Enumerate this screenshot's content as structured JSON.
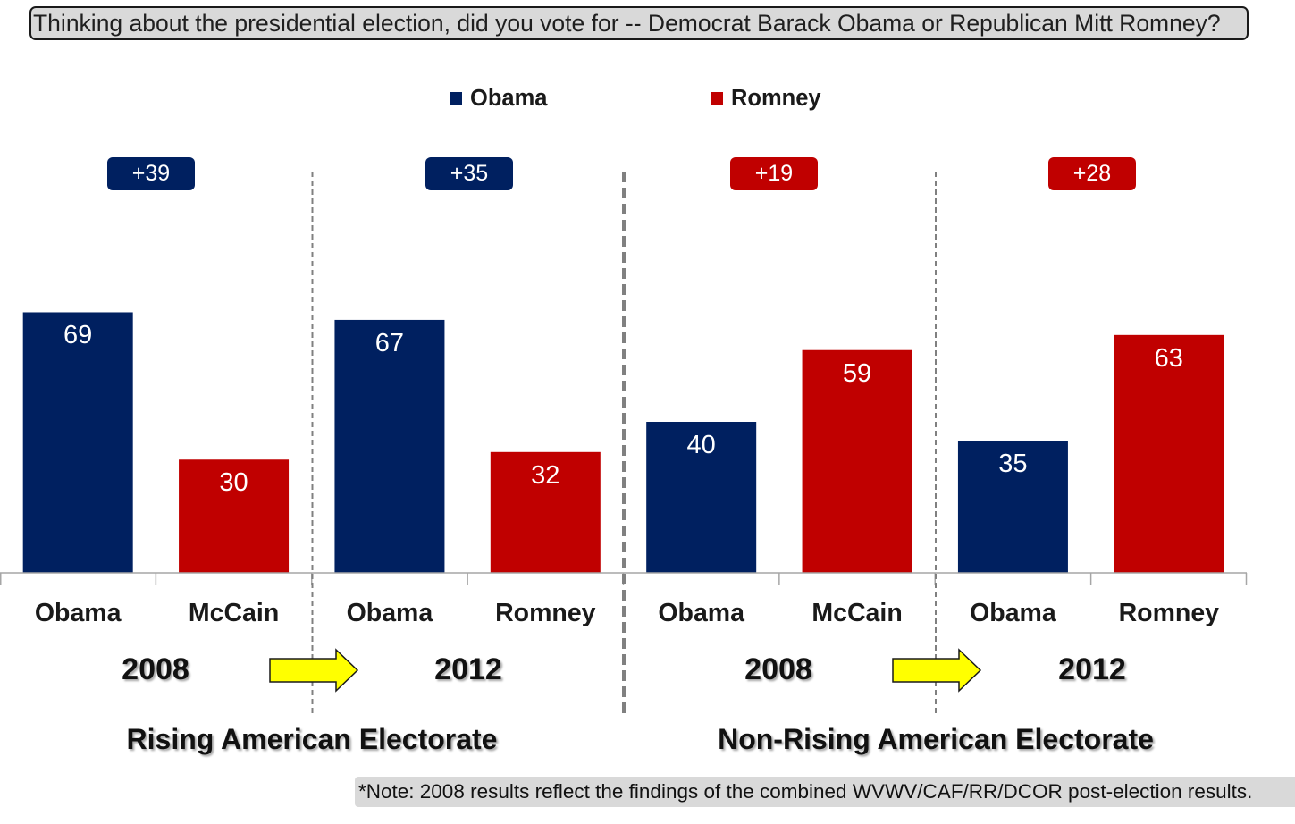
{
  "chart_data": {
    "type": "bar",
    "title": "Thinking about the presidential election, did you vote for -- Democrat Barack Obama or Republican Mitt Romney?",
    "legend_position": "top",
    "grid": false,
    "ylim": [
      0,
      100
    ],
    "legend": [
      {
        "name": "Obama",
        "color": "#002060"
      },
      {
        "name": "Romney",
        "color": "#C00000"
      }
    ],
    "categories": [
      "Obama",
      "McCain",
      "Obama",
      "Romney",
      "Obama",
      "McCain",
      "Obama",
      "Romney"
    ],
    "values": [
      69,
      30,
      67,
      32,
      40,
      59,
      35,
      63
    ],
    "bar_colors": [
      "#002060",
      "#C00000",
      "#002060",
      "#C00000",
      "#002060",
      "#C00000",
      "#002060",
      "#C00000"
    ],
    "years": [
      "2008",
      "2012",
      "2008",
      "2012"
    ],
    "margins": [
      {
        "label": "+39",
        "color": "#002060"
      },
      {
        "label": "+35",
        "color": "#002060"
      },
      {
        "label": "+19",
        "color": "#C00000"
      },
      {
        "label": "+28",
        "color": "#C00000"
      }
    ],
    "groups": [
      "Rising American Electorate",
      "Non-Rising American Electorate"
    ]
  },
  "note": "*Note: 2008 results reflect the findings of the combined WVWV/CAF/RR/DCOR post-election results."
}
